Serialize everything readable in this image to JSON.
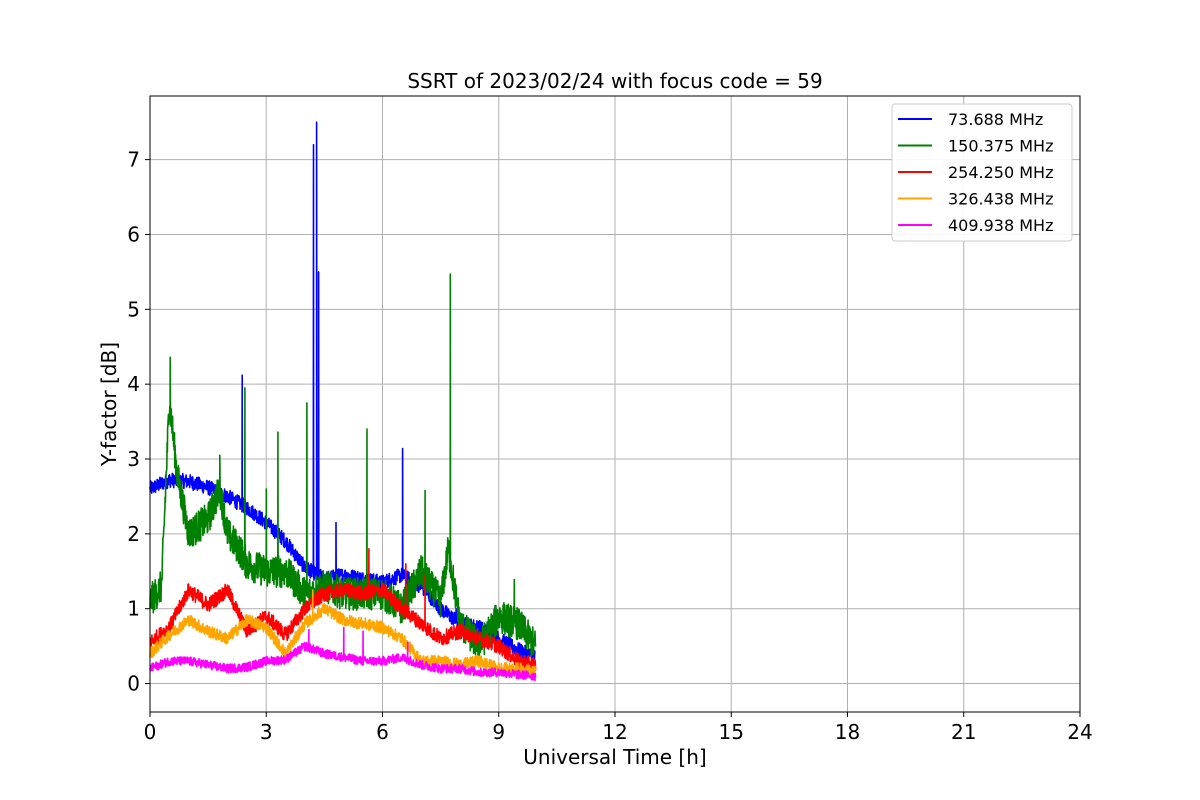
{
  "chart_data": {
    "type": "line",
    "title": "SSRT of 2023/02/24 with focus code = 59",
    "xlabel": "Universal Time [h]",
    "ylabel": "Y-factor [dB]",
    "xlim": [
      0,
      24
    ],
    "ylim": [
      -0.38,
      7.85
    ],
    "xticks": [
      0,
      3,
      6,
      9,
      12,
      15,
      18,
      21,
      24
    ],
    "yticks": [
      0,
      1,
      2,
      3,
      4,
      5,
      6,
      7
    ],
    "grid": true,
    "legend_position": "top-right",
    "series": [
      {
        "name": " 73.688 MHz",
        "color": "#0000ff",
        "baseline": [
          [
            0,
            2.6
          ],
          [
            0.5,
            2.72
          ],
          [
            1,
            2.7
          ],
          [
            1.5,
            2.62
          ],
          [
            2,
            2.5
          ],
          [
            2.5,
            2.35
          ],
          [
            3,
            2.15
          ],
          [
            3.5,
            1.9
          ],
          [
            4,
            1.55
          ],
          [
            4.5,
            1.4
          ],
          [
            5,
            1.45
          ],
          [
            5.5,
            1.4
          ],
          [
            6,
            1.35
          ],
          [
            6.5,
            1.45
          ],
          [
            7,
            1.3
          ],
          [
            7.5,
            1.0
          ],
          [
            8,
            0.8
          ],
          [
            8.5,
            0.75
          ],
          [
            9,
            0.6
          ],
          [
            9.5,
            0.45
          ],
          [
            9.95,
            0.35
          ]
        ],
        "noise": 0.1,
        "spikes": [
          [
            2.38,
            4.12
          ],
          [
            4.22,
            7.2
          ],
          [
            4.3,
            7.5
          ],
          [
            4.35,
            5.5
          ],
          [
            4.8,
            2.15
          ],
          [
            6.52,
            3.14
          ],
          [
            7.9,
            1.0
          ]
        ]
      },
      {
        "name": "150.375 MHz",
        "color": "#008000",
        "baseline": [
          [
            0,
            1.1
          ],
          [
            0.3,
            1.3
          ],
          [
            0.5,
            3.8
          ],
          [
            0.7,
            2.8
          ],
          [
            1,
            2.0
          ],
          [
            1.5,
            2.2
          ],
          [
            1.8,
            2.6
          ],
          [
            2,
            2.0
          ],
          [
            2.3,
            1.8
          ],
          [
            2.5,
            1.6
          ],
          [
            3,
            1.5
          ],
          [
            3.5,
            1.5
          ],
          [
            4,
            1.2
          ],
          [
            4.5,
            1.3
          ],
          [
            5,
            1.2
          ],
          [
            5.5,
            1.2
          ],
          [
            6,
            1.2
          ],
          [
            6.5,
            1.0
          ],
          [
            7,
            1.5
          ],
          [
            7.5,
            1.1
          ],
          [
            7.7,
            1.8
          ],
          [
            8,
            0.8
          ],
          [
            8.5,
            0.5
          ],
          [
            9,
            0.9
          ],
          [
            9.5,
            0.8
          ],
          [
            9.95,
            0.5
          ]
        ],
        "noise": 0.22,
        "spikes": [
          [
            0.52,
            4.36
          ],
          [
            1.8,
            3.05
          ],
          [
            2.45,
            3.95
          ],
          [
            3.3,
            3.36
          ],
          [
            3.0,
            2.6
          ],
          [
            4.05,
            3.75
          ],
          [
            5.6,
            3.4
          ],
          [
            7.1,
            2.58
          ],
          [
            7.75,
            5.47
          ],
          [
            9.4,
            1.39
          ]
        ]
      },
      {
        "name": "254.250 MHz",
        "color": "#ff0000",
        "baseline": [
          [
            0,
            0.55
          ],
          [
            0.5,
            0.75
          ],
          [
            1,
            1.25
          ],
          [
            1.5,
            1.05
          ],
          [
            2,
            1.25
          ],
          [
            2.5,
            0.7
          ],
          [
            3,
            0.9
          ],
          [
            3.5,
            0.65
          ],
          [
            4,
            1.0
          ],
          [
            4.5,
            1.2
          ],
          [
            5,
            1.25
          ],
          [
            5.5,
            1.2
          ],
          [
            6,
            1.25
          ],
          [
            6.5,
            1.0
          ],
          [
            7,
            0.8
          ],
          [
            7.5,
            0.6
          ],
          [
            8,
            0.7
          ],
          [
            8.5,
            0.6
          ],
          [
            9,
            0.5
          ],
          [
            9.5,
            0.3
          ],
          [
            9.95,
            0.25
          ]
        ],
        "noise": 0.1,
        "spikes": [
          [
            5.65,
            1.8
          ],
          [
            6.6,
            1.6
          ],
          [
            7.1,
            1.45
          ]
        ]
      },
      {
        "name": "326.438 MHz",
        "color": "#ffa500",
        "baseline": [
          [
            0,
            0.4
          ],
          [
            0.5,
            0.65
          ],
          [
            1,
            0.85
          ],
          [
            1.5,
            0.7
          ],
          [
            2,
            0.6
          ],
          [
            2.5,
            0.85
          ],
          [
            3,
            0.75
          ],
          [
            3.5,
            0.4
          ],
          [
            4,
            0.8
          ],
          [
            4.5,
            1.0
          ],
          [
            5,
            0.85
          ],
          [
            5.5,
            0.8
          ],
          [
            6,
            0.75
          ],
          [
            6.5,
            0.6
          ],
          [
            7,
            0.3
          ],
          [
            7.5,
            0.3
          ],
          [
            8,
            0.25
          ],
          [
            8.5,
            0.3
          ],
          [
            9,
            0.2
          ],
          [
            9.5,
            0.2
          ],
          [
            9.95,
            0.15
          ]
        ],
        "noise": 0.08,
        "spikes": [
          [
            4.2,
            1.25
          ]
        ]
      },
      {
        "name": "409.938 MHz",
        "color": "#ff00ff",
        "baseline": [
          [
            0,
            0.2
          ],
          [
            0.5,
            0.3
          ],
          [
            1,
            0.3
          ],
          [
            1.5,
            0.25
          ],
          [
            2,
            0.2
          ],
          [
            2.5,
            0.22
          ],
          [
            3,
            0.3
          ],
          [
            3.5,
            0.32
          ],
          [
            4,
            0.5
          ],
          [
            4.5,
            0.4
          ],
          [
            5,
            0.35
          ],
          [
            5.5,
            0.3
          ],
          [
            6,
            0.3
          ],
          [
            6.5,
            0.35
          ],
          [
            7,
            0.25
          ],
          [
            7.5,
            0.2
          ],
          [
            8,
            0.2
          ],
          [
            8.5,
            0.15
          ],
          [
            9,
            0.15
          ],
          [
            9.5,
            0.12
          ],
          [
            9.95,
            0.1
          ]
        ],
        "noise": 0.06,
        "spikes": [
          [
            4.1,
            0.72
          ],
          [
            5.0,
            0.75
          ],
          [
            5.5,
            0.7
          ],
          [
            6.65,
            0.55
          ]
        ]
      }
    ]
  }
}
